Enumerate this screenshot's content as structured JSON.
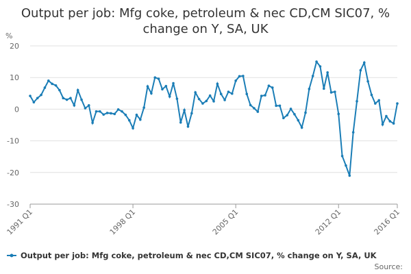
{
  "chart_data": {
    "type": "line",
    "title": "Output per job: Mfg coke, petroleum & nec CD,CM SIC07, % change on Y, SA, UK",
    "y_label": "%",
    "source": "Source:",
    "categories": [
      "1991 Q1",
      null,
      null,
      null,
      null,
      null,
      null,
      null,
      null,
      null,
      null,
      null,
      null,
      null,
      null,
      null,
      null,
      null,
      null,
      null,
      null,
      null,
      null,
      null,
      null,
      null,
      null,
      null,
      "1998 Q1",
      null,
      null,
      null,
      null,
      null,
      null,
      null,
      null,
      null,
      null,
      null,
      null,
      null,
      null,
      null,
      null,
      null,
      null,
      null,
      null,
      null,
      null,
      null,
      null,
      null,
      null,
      null,
      "2005 Q1",
      null,
      null,
      null,
      null,
      null,
      null,
      null,
      null,
      null,
      null,
      null,
      null,
      null,
      null,
      null,
      null,
      null,
      null,
      null,
      null,
      null,
      null,
      null,
      null,
      null,
      null,
      null,
      "2012 Q1",
      null,
      null,
      null,
      null,
      null,
      null,
      null,
      null,
      null,
      null,
      null,
      null,
      null,
      null,
      null,
      "2016 Q1"
    ],
    "series": [
      {
        "name": "Output per job: Mfg coke, petroleum & nec CD,CM SIC07, % change on Y, SA, UK",
        "color": "#1a7db6",
        "values": [
          4.2,
          2.2,
          3.5,
          4.5,
          6.8,
          9,
          8,
          7.5,
          6,
          3.5,
          3,
          3.5,
          1.2,
          6,
          3,
          0.3,
          1.2,
          -4.3,
          -0.7,
          -0.7,
          -1.7,
          -1.2,
          -1.3,
          -1.5,
          -0.1,
          -0.7,
          -1.8,
          -3.5,
          -6,
          -1.8,
          -3.3,
          0.5,
          7.2,
          5,
          10,
          9.6,
          6.3,
          7.3,
          4,
          8.2,
          3.3,
          -4.2,
          -0.3,
          -5.5,
          -1.3,
          5.3,
          3.2,
          1.8,
          2.6,
          4.3,
          2.5,
          8,
          4.8,
          2.9,
          5.5,
          4.9,
          9,
          10.4,
          10.5,
          4.8,
          1.3,
          0.3,
          -0.8,
          4.2,
          4.4,
          7.4,
          6.8,
          1.1,
          1.1,
          -2.8,
          -1.9,
          0.1,
          -1.6,
          -3.5,
          -5.8,
          -1.1,
          6.4,
          10.5,
          15,
          13.5,
          6.5,
          11.6,
          5.3,
          5.5,
          -1.5,
          -14.8,
          -17.8,
          -21,
          -7.3,
          2.5,
          12.3,
          14.7,
          8.8,
          4.5,
          1.8,
          2.8,
          -4.8,
          -2.2,
          -3.8,
          -4.5,
          1.8
        ]
      }
    ],
    "ylim": [
      -30,
      20
    ],
    "yticks": [
      -30,
      -20,
      -10,
      0,
      10,
      20
    ],
    "grid": true,
    "legend": "bottom"
  }
}
